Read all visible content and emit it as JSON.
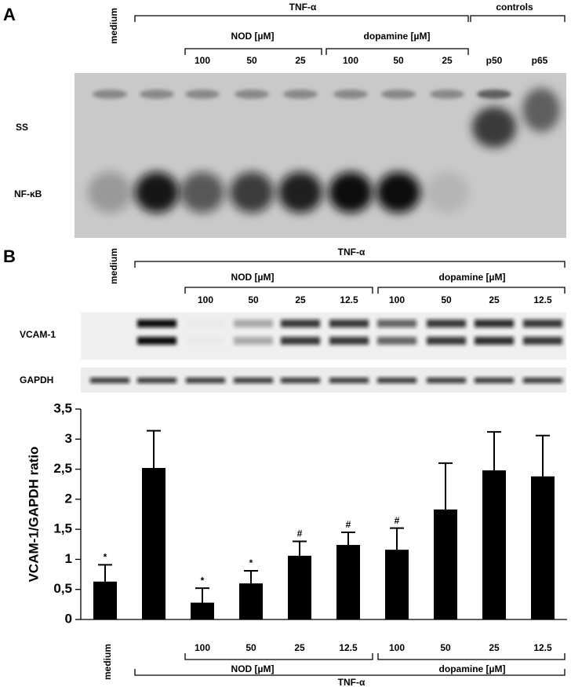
{
  "panel_a": {
    "label": "A",
    "medium": "medium",
    "tnf": "TNF-α",
    "controls": "controls",
    "nod": "NOD [µM]",
    "dopamine": "dopamine [µM]",
    "lanes": [
      "100",
      "50",
      "25",
      "100",
      "50",
      "25",
      "p50",
      "p65"
    ],
    "bands": [
      "SS",
      "NF-κB"
    ]
  },
  "panel_b": {
    "label": "B",
    "medium": "medium",
    "tnf": "TNF-α",
    "nod": "NOD [µM]",
    "dopamine": "dopamine [µM]",
    "lanes": [
      "100",
      "50",
      "25",
      "12.5",
      "100",
      "50",
      "25",
      "12.5"
    ],
    "blots": [
      "VCAM-1",
      "GAPDH"
    ]
  },
  "chart_data": {
    "type": "bar",
    "y_label": "VCAM-1/GAPDH ratio",
    "color": "#000000",
    "categories": [
      "medium",
      null,
      "100",
      "50",
      "25",
      "12.5",
      "100",
      "50",
      "25",
      "12.5"
    ],
    "values": [
      0.63,
      2.52,
      0.28,
      0.6,
      1.06,
      1.24,
      1.16,
      1.83,
      2.48,
      2.38
    ],
    "errors": [
      0.28,
      0.62,
      0.24,
      0.21,
      0.24,
      0.21,
      0.36,
      0.77,
      0.64,
      0.68
    ],
    "annotations": [
      {
        "category": 0,
        "text": "*"
      },
      {
        "category": 2,
        "text": "*"
      },
      {
        "category": 3,
        "text": "*"
      },
      {
        "category": 4,
        "text": "#"
      },
      {
        "category": 5,
        "text": "#"
      },
      {
        "category": 6,
        "text": "#"
      }
    ],
    "groups": [
      "NOD [µM]",
      "dopamine [µM]"
    ],
    "outer_group": "TNF-α",
    "ylim": [
      0,
      3.5
    ],
    "yticks": [
      0,
      {
        "value": 0.5,
        "label": "0,5"
      },
      1,
      {
        "value": 1.5,
        "label": "1,5"
      },
      2,
      {
        "value": 2.5,
        "label": "2,5"
      },
      3,
      {
        "value": 3.5,
        "label": "3,5"
      }
    ]
  }
}
